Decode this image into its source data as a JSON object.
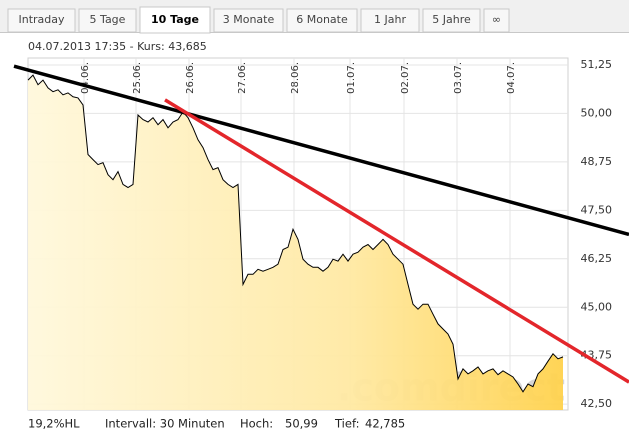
{
  "tabs": [
    "Intraday",
    "5 Tage",
    "10 Tage",
    "3 Monate",
    "6 Monate",
    "1 Jahr",
    "5 Jahre",
    "∞"
  ],
  "active_tab": 2,
  "chart_data": {
    "type": "area",
    "subtitle": "04.07.2013 17:35  -  Kurs: 43,685",
    "watermark": ".comdirect",
    "line_color": "#000000",
    "grid": true,
    "xlim": [
      0,
      108
    ],
    "ylim": [
      42.35,
      51.43
    ],
    "xticks": [
      {
        "value": 11.2,
        "label": "04.06."
      },
      {
        "value": 21.6,
        "label": "25.06."
      },
      {
        "value": 32.2,
        "label": "26.06."
      },
      {
        "value": 42.6,
        "label": "27.06."
      },
      {
        "value": 53.2,
        "label": "28.06."
      },
      {
        "value": 64.4,
        "label": "01.07."
      },
      {
        "value": 75.2,
        "label": "02.07."
      },
      {
        "value": 85.8,
        "label": "03.07."
      },
      {
        "value": 96.4,
        "label": "04.07."
      }
    ],
    "yticks": [
      {
        "value": 51.25,
        "label": "51,25"
      },
      {
        "value": 50,
        "label": "50,00"
      },
      {
        "value": 48.75,
        "label": "48,75"
      },
      {
        "value": 47.5,
        "label": "47,50"
      },
      {
        "value": 46.25,
        "label": "46,25"
      },
      {
        "value": 45,
        "label": "45,00"
      },
      {
        "value": 43.75,
        "label": "43,75"
      },
      {
        "value": 42.5,
        "label": "42,50"
      }
    ],
    "x": [
      0,
      1,
      2,
      3,
      4,
      5,
      6,
      7,
      8,
      9,
      10,
      11,
      12,
      13,
      14,
      15,
      16,
      17,
      18,
      19,
      20,
      21,
      22,
      23,
      24,
      25,
      26,
      27,
      28,
      29,
      30,
      31,
      32,
      33,
      34,
      35,
      36,
      37,
      38,
      39,
      40,
      41,
      42,
      43,
      44,
      45,
      46,
      47,
      48,
      49,
      50,
      51,
      52,
      53,
      54,
      55,
      56,
      57,
      58,
      59,
      60,
      61,
      62,
      63,
      64,
      65,
      66,
      67,
      68,
      69,
      70,
      71,
      72,
      73,
      74,
      75,
      76,
      77,
      78,
      79,
      80,
      81,
      82,
      83,
      84,
      85,
      86,
      87,
      88,
      89,
      90,
      91,
      92,
      93,
      94,
      95,
      96,
      97,
      98,
      99,
      100,
      101,
      102,
      103,
      104,
      105,
      106,
      107
    ],
    "values": [
      50.86,
      50.99,
      50.74,
      50.86,
      50.66,
      50.56,
      50.61,
      50.48,
      50.53,
      50.43,
      50.4,
      50.22,
      48.94,
      48.81,
      48.68,
      48.73,
      48.42,
      48.29,
      48.5,
      48.17,
      48.09,
      48.17,
      49.96,
      49.84,
      49.78,
      49.89,
      49.71,
      49.84,
      49.63,
      49.78,
      49.84,
      50.04,
      49.89,
      49.63,
      49.32,
      49.12,
      48.81,
      48.55,
      48.6,
      48.29,
      48.17,
      48.09,
      48.17,
      45.59,
      45.85,
      45.85,
      45.98,
      45.93,
      45.98,
      46.03,
      46.11,
      46.49,
      46.55,
      47.01,
      46.75,
      46.24,
      46.11,
      46.03,
      46.03,
      45.93,
      46.03,
      46.24,
      46.19,
      46.37,
      46.19,
      46.37,
      46.42,
      46.55,
      46.62,
      46.49,
      46.62,
      46.75,
      46.62,
      46.37,
      46.24,
      46.11,
      45.59,
      45.08,
      44.95,
      45.08,
      45.08,
      44.82,
      44.57,
      44.44,
      44.31,
      44.05,
      43.15,
      43.41,
      43.28,
      43.36,
      43.46,
      43.28,
      43.36,
      43.41,
      43.26,
      43.36,
      43.28,
      43.2,
      43.02,
      42.82,
      43.02,
      42.95,
      43.28,
      43.41,
      43.61,
      43.8,
      43.67,
      43.72
    ],
    "trendlines": [
      {
        "color": "#000000",
        "x": [
          -2.8,
          120.2
        ],
        "values": [
          51.22,
          46.88
        ]
      },
      {
        "color": "#e3262b",
        "x": [
          27.4,
          120.2
        ],
        "values": [
          50.35,
          43.07
        ]
      }
    ]
  },
  "footer": {
    "hl": "19,2%HL",
    "interval": "Intervall: 30 Minuten",
    "high_label": "Hoch:",
    "high": "50,99",
    "low_label": "Tief:",
    "low": "42,785"
  }
}
